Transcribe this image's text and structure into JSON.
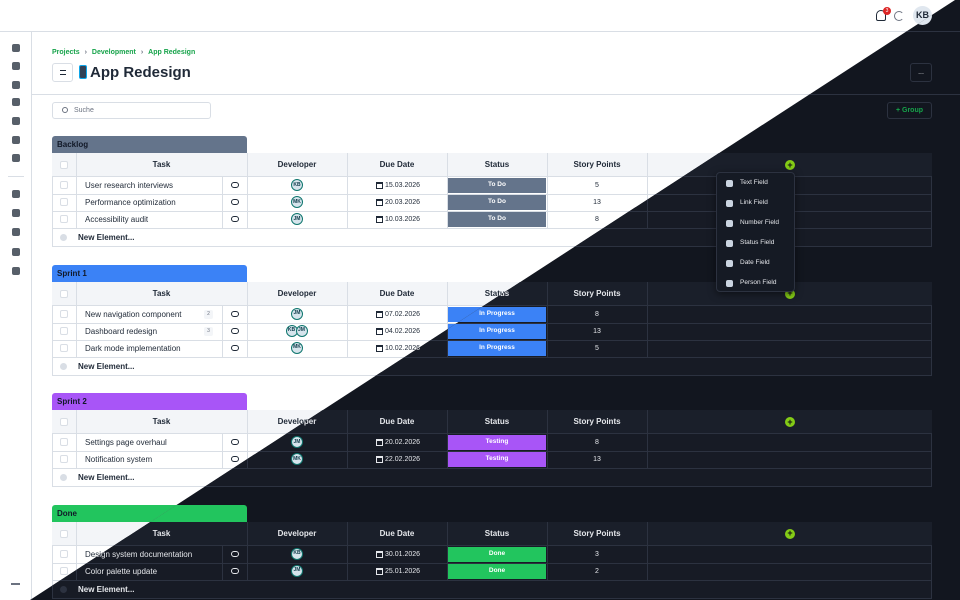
{
  "header": {
    "notifications": "3",
    "user": "KB"
  },
  "breadcrumb": [
    "Projects",
    "Development",
    "App Redesign"
  ],
  "title": "App Redesign",
  "more_button": "...",
  "search_placeholder": "Suche",
  "group_button": "Group",
  "columns": [
    "Task",
    "Developer",
    "Due Date",
    "Status",
    "Story Points"
  ],
  "new_element": "New Element...",
  "groups": [
    {
      "name": "Backlog",
      "color": "#64748b",
      "rows": [
        {
          "task": "User research interviews",
          "developers": [
            "KB"
          ],
          "due": "15.03.2026",
          "status": "To Do",
          "points": 5
        },
        {
          "task": "Performance optimization",
          "developers": [
            "MK"
          ],
          "due": "20.03.2026",
          "status": "To Do",
          "points": 13
        },
        {
          "task": "Accessibility audit",
          "developers": [
            "JM"
          ],
          "due": "10.03.2026",
          "status": "To Do",
          "points": 8
        }
      ]
    },
    {
      "name": "Sprint 1",
      "color": "#3b82f6",
      "rows": [
        {
          "task": "New navigation component",
          "subtasks": "2",
          "developers": [
            "JM"
          ],
          "due": "07.02.2026",
          "status": "In Progress",
          "points": 8
        },
        {
          "task": "Dashboard redesign",
          "subtasks": "3",
          "developers": [
            "KB",
            "JM"
          ],
          "due": "04.02.2026",
          "status": "In Progress",
          "points": 13
        },
        {
          "task": "Dark mode implementation",
          "developers": [
            "MK"
          ],
          "due": "10.02.2026",
          "status": "In Progress",
          "points": 5
        }
      ]
    },
    {
      "name": "Sprint 2",
      "color": "#a855f7",
      "rows": [
        {
          "task": "Settings page overhaul",
          "developers": [
            "JM"
          ],
          "due": "20.02.2026",
          "status": "Testing",
          "points": 8
        },
        {
          "task": "Notification system",
          "developers": [
            "MK"
          ],
          "due": "22.02.2026",
          "status": "Testing",
          "points": 13
        }
      ]
    },
    {
      "name": "Done",
      "color": "#22c55e",
      "rows": [
        {
          "task": "Design system documentation",
          "developers": [
            "KB"
          ],
          "due": "30.01.2026",
          "status": "Done",
          "points": 3
        },
        {
          "task": "Color palette update",
          "developers": [
            "JM"
          ],
          "due": "25.01.2026",
          "status": "Done",
          "points": 2
        }
      ]
    }
  ],
  "field_menu": [
    "Text Field",
    "Link Field",
    "Number Field",
    "Status Field",
    "Date Field",
    "Person Field"
  ]
}
